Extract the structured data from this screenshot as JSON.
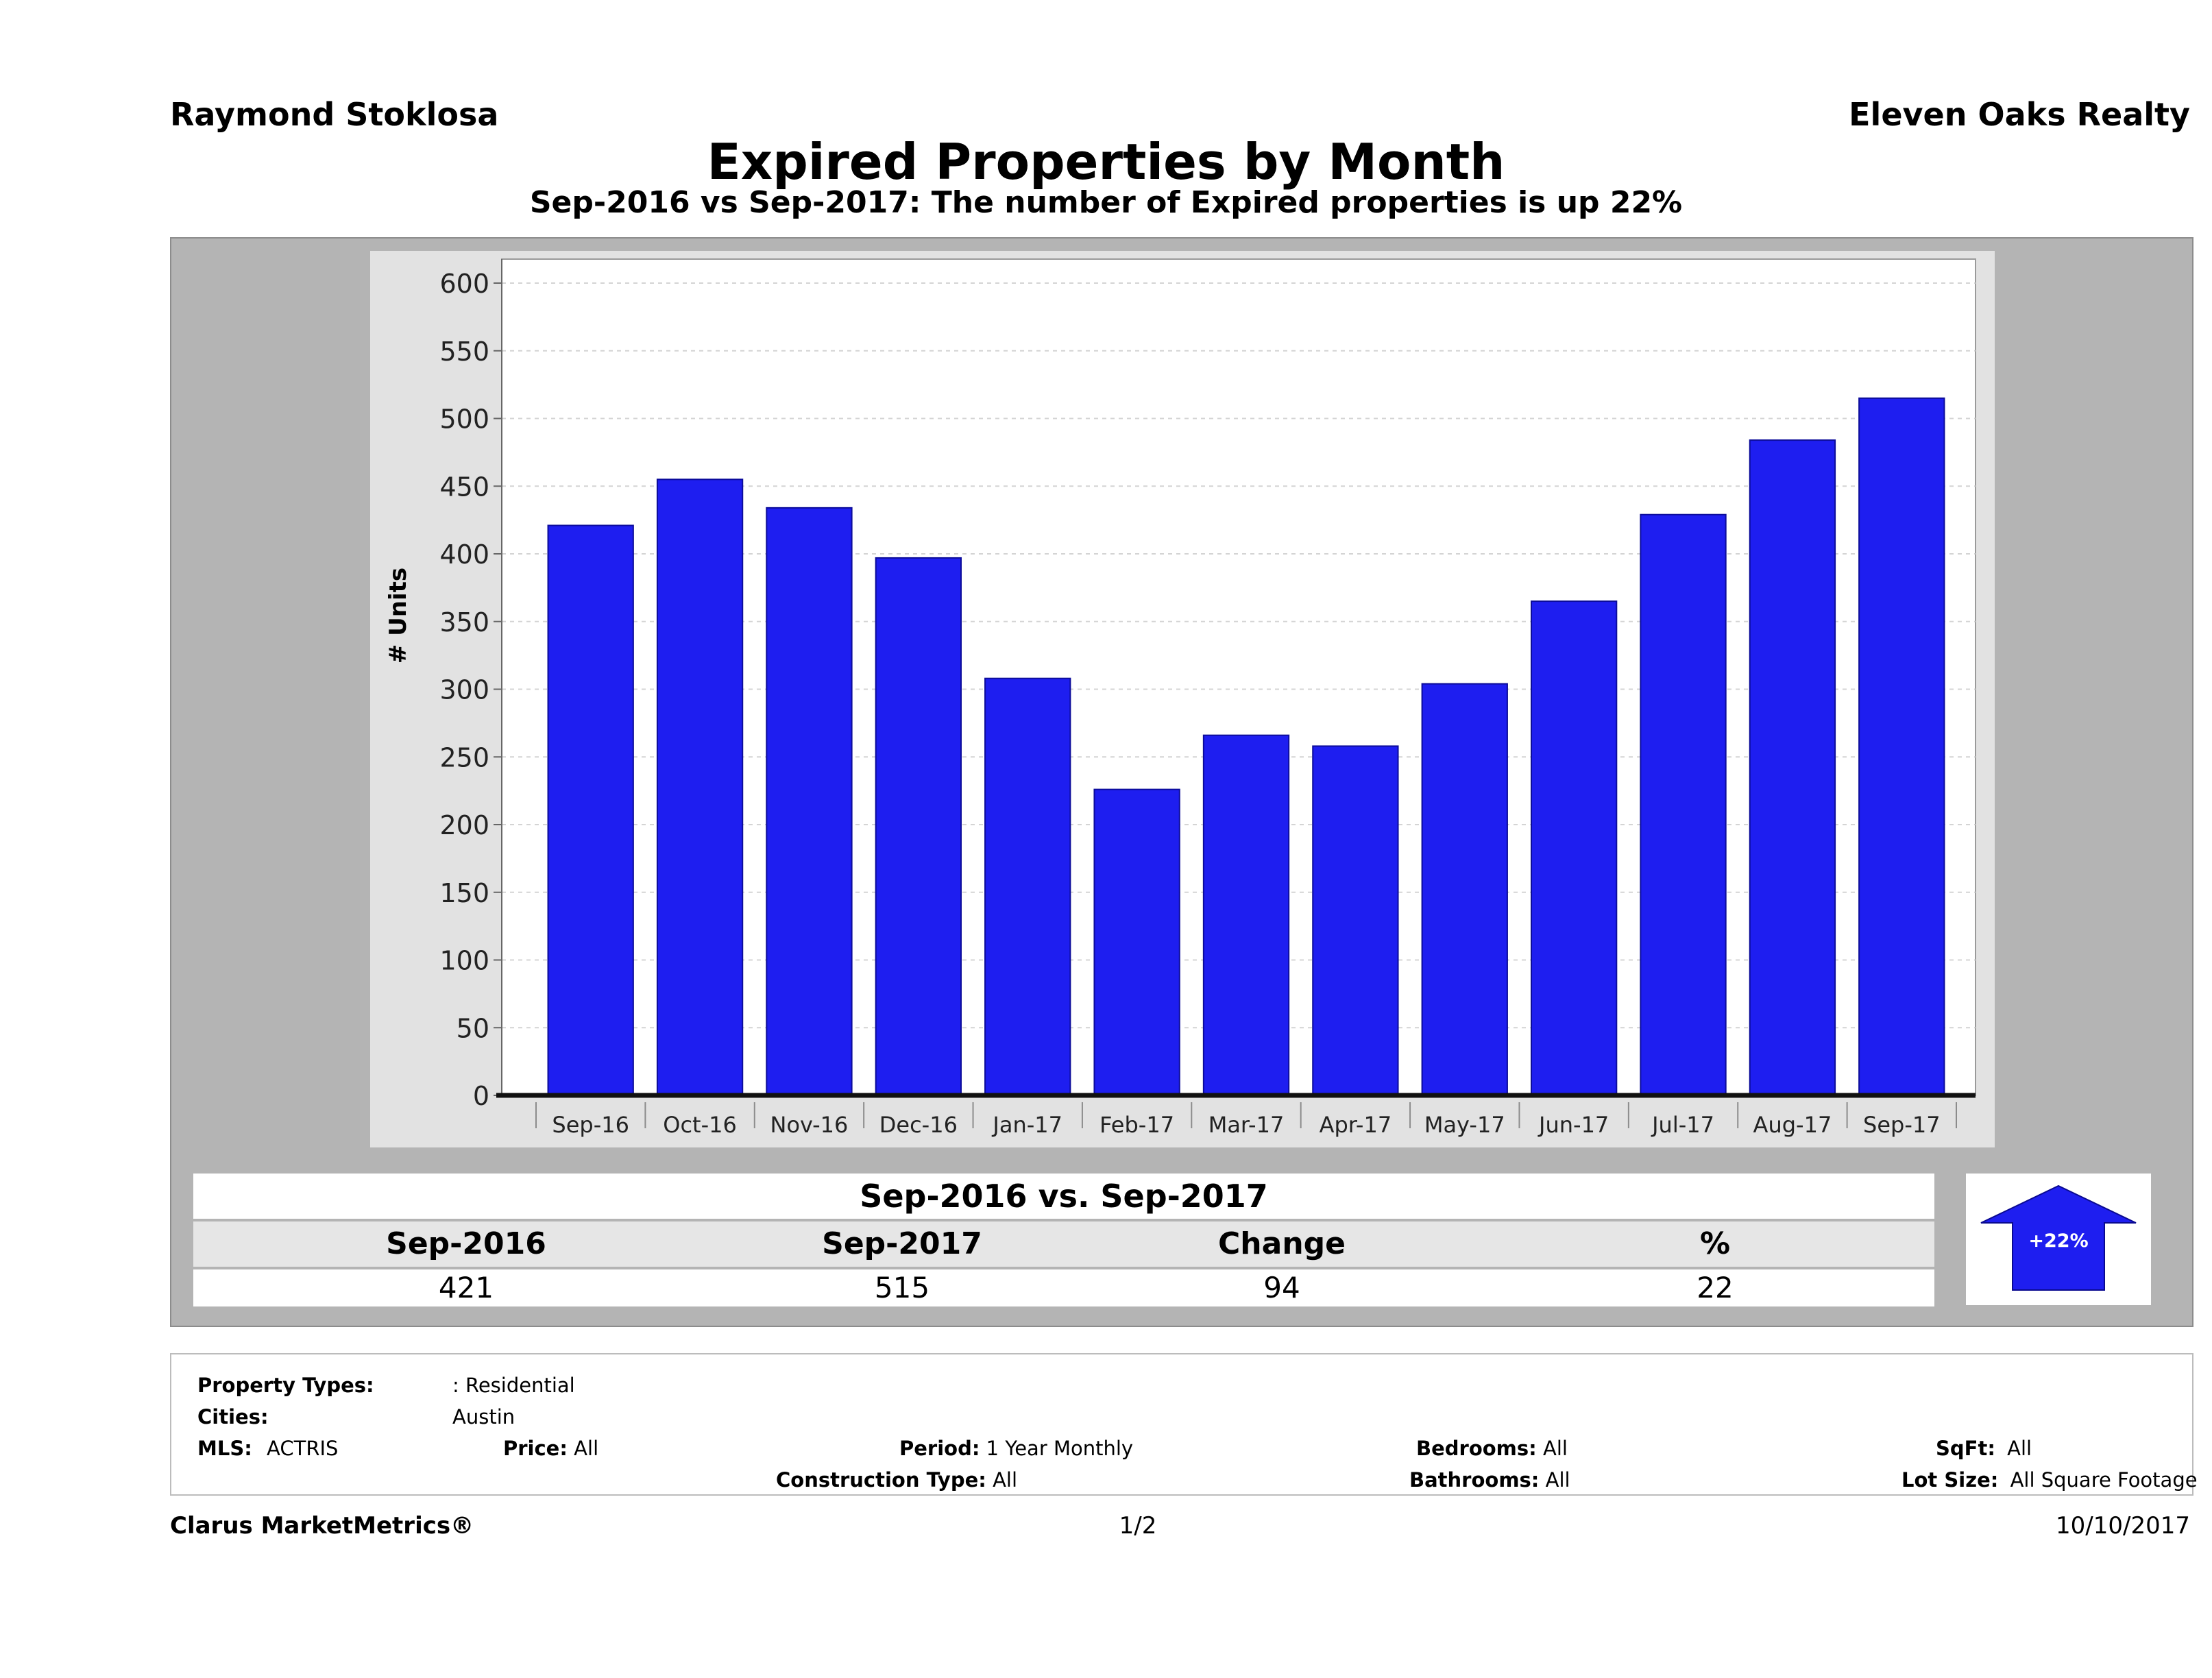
{
  "header": {
    "agent": "Raymond Stoklosa",
    "brokerage": "Eleven Oaks Realty",
    "title": "Expired Properties by Month",
    "subtitle": "Sep-2016 vs Sep-2017: The number of Expired  properties is up 22%"
  },
  "chart_data": {
    "type": "bar",
    "categories": [
      "Sep-16",
      "Oct-16",
      "Nov-16",
      "Dec-16",
      "Jan-17",
      "Feb-17",
      "Mar-17",
      "Apr-17",
      "May-17",
      "Jun-17",
      "Jul-17",
      "Aug-17",
      "Sep-17"
    ],
    "values": [
      421,
      455,
      434,
      397,
      308,
      226,
      266,
      258,
      304,
      365,
      429,
      484,
      515
    ],
    "ylabel": "# Units",
    "ylim": [
      0,
      600
    ],
    "yticks": [
      0,
      50,
      100,
      150,
      200,
      250,
      300,
      350,
      400,
      450,
      500,
      550,
      600
    ],
    "bar_color": "#1e1ef0",
    "grid": true
  },
  "summary": {
    "title": "Sep-2016 vs. Sep-2017",
    "headers": [
      "Sep-2016",
      "Sep-2017",
      "Change",
      "%"
    ],
    "values": [
      "421",
      "515",
      "94",
      "22"
    ],
    "badge": "+22%",
    "badge_color": "#1e1ef0"
  },
  "criteria": {
    "property_types_label": "Property Types:",
    "property_types_value": ": Residential",
    "cities_label": "Cities:",
    "cities_value": "Austin",
    "mls_label": "MLS:",
    "mls_value": "ACTRIS",
    "price_label": "Price:",
    "price_value": "All",
    "period_label": "Period:",
    "period_value": "1 Year Monthly",
    "construction_label": "Construction Type:",
    "construction_value": "All",
    "bedrooms_label": "Bedrooms:",
    "bedrooms_value": "All",
    "bathrooms_label": "Bathrooms:",
    "bathrooms_value": "All",
    "sqft_label": "SqFt:",
    "sqft_value": "All",
    "lot_label": "Lot Size:",
    "lot_value": "All Square Footage"
  },
  "footer": {
    "brand": "Clarus MarketMetrics®",
    "page": "1/2",
    "date": "10/10/2017"
  }
}
